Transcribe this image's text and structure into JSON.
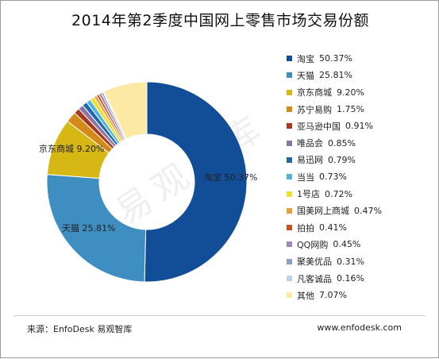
{
  "chart_data": {
    "type": "pie",
    "donut": true,
    "title": "2014年第2季度中国网上零售市场交易份额",
    "categories": [
      "淘宝",
      "天猫",
      "京东商城",
      "苏宁易购",
      "亚马逊中国",
      "唯品会",
      "易迅网",
      "当当",
      "1号店",
      "国美网上商城",
      "拍拍",
      "QQ网购",
      "聚美优品",
      "凡客诚品",
      "其他"
    ],
    "values": [
      50.37,
      25.81,
      9.2,
      1.75,
      0.91,
      0.85,
      0.79,
      0.73,
      0.72,
      0.47,
      0.41,
      0.45,
      0.31,
      0.16,
      7.07
    ],
    "value_labels": [
      "50.37%",
      "25.81%",
      "9.20%",
      "1.75%",
      "0.91%",
      "0.85%",
      "0.79%",
      "0.73%",
      "0.72%",
      "0.47%",
      "0.41%",
      "0.45%",
      "0.31%",
      "0.16%",
      "7.07%"
    ],
    "colors": [
      "#124E97",
      "#3F8EC2",
      "#D6B714",
      "#D58A18",
      "#A73A1D",
      "#8E75A8",
      "#2068AE",
      "#52B2DC",
      "#F2DE30",
      "#E8A13A",
      "#C9501A",
      "#A186B8",
      "#8E9FC9",
      "#B8D3EC",
      "#FCE9A3"
    ],
    "slice_labels_shown": [
      "淘宝",
      "天猫",
      "京东商城"
    ],
    "legend_position": "right"
  },
  "legend": {
    "items": [
      {
        "label": "淘宝",
        "value": "50.37%"
      },
      {
        "label": "天猫",
        "value": "25.81%"
      },
      {
        "label": "京东商城",
        "value": "9.20%"
      },
      {
        "label": "苏宁易购",
        "value": "1.75%"
      },
      {
        "label": "亚马逊中国",
        "value": "0.91%"
      },
      {
        "label": "唯品会",
        "value": "0.85%"
      },
      {
        "label": "易迅网",
        "value": "0.79%"
      },
      {
        "label": "当当",
        "value": "0.73%"
      },
      {
        "label": "1号店",
        "value": "0.72%"
      },
      {
        "label": "国美网上商城",
        "value": "0.47%"
      },
      {
        "label": "拍拍",
        "value": "0.41%"
      },
      {
        "label": "QQ网购",
        "value": "0.45%"
      },
      {
        "label": "聚美优品",
        "value": "0.31%"
      },
      {
        "label": "凡客诚品",
        "value": "0.16%"
      },
      {
        "label": "其他",
        "value": "7.07%"
      }
    ]
  },
  "footer": {
    "source": "来源：EnfoDesk 易观智库",
    "website": "www.enfodesk.com"
  },
  "watermark": "易观智库"
}
